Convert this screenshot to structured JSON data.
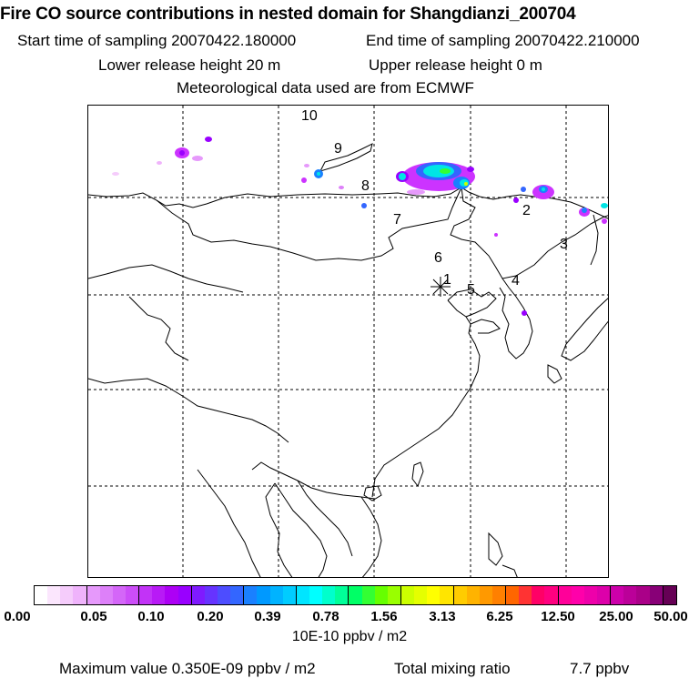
{
  "header": {
    "title": "Fire CO source contributions in nested domain for Shangdianzi_200704",
    "start_label": "Start time of sampling 20070422.180000",
    "end_label": "End time of sampling 20070422.210000",
    "lower_label": "Lower release height   20 m",
    "upper_label": "Upper release height    0 m",
    "met_label": "Meteorological data used are from ECMWF"
  },
  "map": {
    "station_number_labels": [
      "1",
      "2",
      "3",
      "4",
      "5",
      "6",
      "7",
      "8",
      "9",
      "10"
    ],
    "colors": {
      "coast": "#000000",
      "grid": "#000000",
      "magenta": "#cc33ff",
      "violet": "#9900ff",
      "blue": "#0066ff",
      "cyan": "#00e5e5",
      "green": "#33ff33"
    }
  },
  "colorbar": {
    "colors": [
      "#ffffff",
      "#fbe6fd",
      "#f5ccfb",
      "#efb3fb",
      "#e699fb",
      "#dd80f9",
      "#d466f8",
      "#cc4df8",
      "#c233f7",
      "#b81af6",
      "#ad00f5",
      "#9900ff",
      "#7f1aff",
      "#6633ff",
      "#4d4dff",
      "#3366ff",
      "#1a80ff",
      "#0099ff",
      "#00b3ff",
      "#00ccff",
      "#00e5ff",
      "#00ffff",
      "#00ffcc",
      "#00ff99",
      "#00ff66",
      "#33ff33",
      "#66ff00",
      "#99ff00",
      "#ccff00",
      "#e5ff00",
      "#ffff00",
      "#ffe500",
      "#ffcc00",
      "#ffb300",
      "#ff9900",
      "#ff8000",
      "#ff6600",
      "#ff3333",
      "#ff0066",
      "#ff0080",
      "#ff0099",
      "#ff00aa",
      "#ee00aa",
      "#dd00aa",
      "#cc00aa",
      "#bb0099",
      "#aa0088",
      "#880077",
      "#660055"
    ],
    "tick_labels": [
      "0.00",
      "0.05",
      "0.10",
      "0.20",
      "0.39",
      "0.78",
      "1.56",
      "3.13",
      "6.25",
      "12.50",
      "25.00",
      "50.00"
    ],
    "unit": "10E-10 ppbv / m2"
  },
  "footer": {
    "max_label": "Maximum value  0.350E-09 ppbv / m2",
    "total_label": "Total mixing ratio",
    "total_value": "7.7 ppbv"
  }
}
